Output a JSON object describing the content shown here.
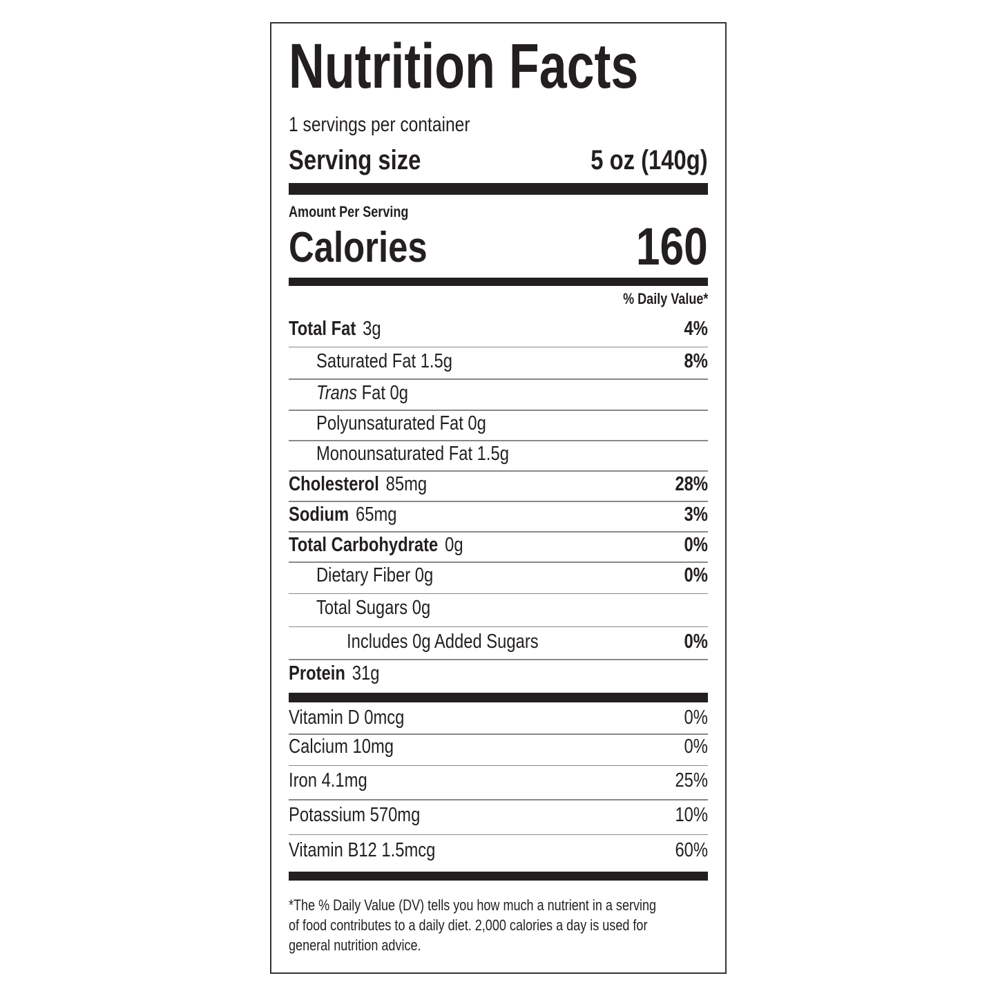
{
  "title": "Nutrition Facts",
  "servings": "1 servings per container",
  "serving_size": {
    "label": "Serving size",
    "value": "5 oz (140g)"
  },
  "amount_per_serving": "Amount Per Serving",
  "calories": {
    "label": "Calories",
    "value": "160"
  },
  "dv_header": "% Daily Value*",
  "rows": [
    {
      "label": "Total Fat",
      "amount": "3g",
      "dv": "4%"
    },
    {
      "label": "Saturated Fat 1.5g",
      "dv": "8%"
    },
    {
      "label_italic": "Trans",
      "label": "Fat 0g"
    },
    {
      "label": "Polyunsaturated Fat 0g"
    },
    {
      "label": "Monounsaturated Fat 1.5g"
    },
    {
      "label": "Cholesterol",
      "amount": "85mg",
      "dv": "28%"
    },
    {
      "label": "Sodium",
      "amount": "65mg",
      "dv": "3%"
    },
    {
      "label": "Total Carbohydrate",
      "amount": "0g",
      "dv": "0%"
    },
    {
      "label": "Dietary Fiber 0g",
      "dv": "0%"
    },
    {
      "label": "Total Sugars 0g"
    },
    {
      "label": "Includes 0g Added Sugars",
      "dv": "0%"
    },
    {
      "label": "Protein",
      "amount": "31g"
    }
  ],
  "vitamins": [
    {
      "label": "Vitamin D 0mcg",
      "dv": "0%"
    },
    {
      "label": "Calcium 10mg",
      "dv": "0%"
    },
    {
      "label": "Iron 4.1mg",
      "dv": "25%"
    },
    {
      "label": "Potassium 570mg",
      "dv": "10%"
    },
    {
      "label": "Vitamin B12 1.5mcg",
      "dv": "60%"
    }
  ],
  "footnote": [
    "*The % Daily Value (DV) tells you how much a nutrient in a serving",
    "of food contributes to a daily diet. 2,000 calories a day is used for",
    "general nutrition advice."
  ]
}
